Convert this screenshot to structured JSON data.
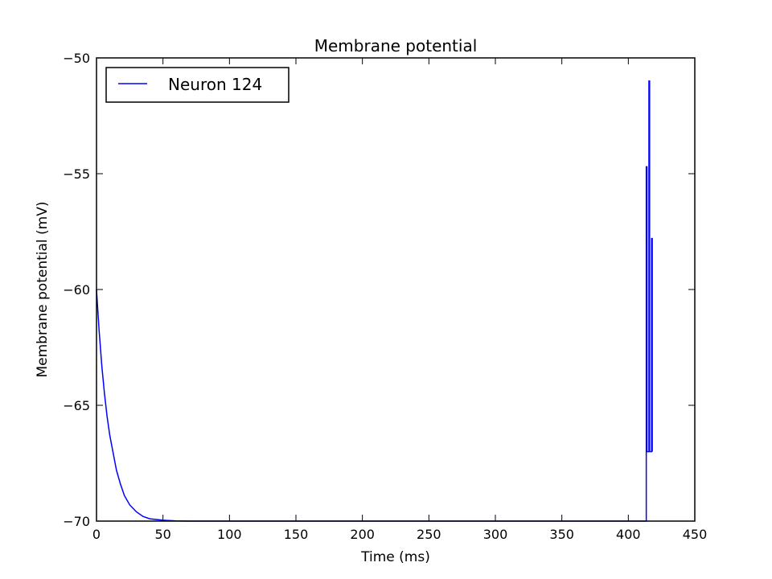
{
  "chart_data": {
    "type": "line",
    "title": "Membrane potential",
    "xlabel": "Time (ms)",
    "ylabel": "Membrane potential (mV)",
    "xlim": [
      0,
      450
    ],
    "ylim": [
      -70,
      -50
    ],
    "xticks": [
      0,
      50,
      100,
      150,
      200,
      250,
      300,
      350,
      400,
      450
    ],
    "yticks": [
      -70,
      -65,
      -60,
      -55,
      -50
    ],
    "xtick_labels": [
      "0",
      "50",
      "100",
      "150",
      "200",
      "250",
      "300",
      "350",
      "400",
      "450"
    ],
    "ytick_labels": [
      "−70",
      "−65",
      "−60",
      "−55",
      "−50"
    ],
    "grid": false,
    "legend": {
      "placement": "top-left",
      "entries": [
        "Neuron 124"
      ]
    },
    "series": [
      {
        "name": "Neuron 124",
        "color": "#0000ff",
        "x": [
          0,
          2,
          4,
          6,
          8,
          10,
          12,
          15,
          18,
          21,
          25,
          30,
          35,
          40,
          50,
          60,
          70,
          80,
          100,
          150,
          200,
          250,
          300,
          350,
          400,
          413.5,
          413.5,
          414,
          414,
          415.5,
          415.5,
          416,
          416,
          417.5,
          417.5,
          418,
          418
        ],
        "y": [
          -60,
          -61.8,
          -63.3,
          -64.5,
          -65.5,
          -66.3,
          -66.9,
          -67.8,
          -68.4,
          -68.9,
          -69.3,
          -69.6,
          -69.8,
          -69.9,
          -69.96,
          -69.99,
          -70,
          -70,
          -70,
          -70,
          -70,
          -70,
          -70,
          -70,
          -70,
          -70,
          -54.7,
          -54.7,
          -67,
          -67,
          -51,
          -51,
          -67,
          -67,
          -57.8,
          -57.8,
          -67
        ]
      }
    ]
  }
}
